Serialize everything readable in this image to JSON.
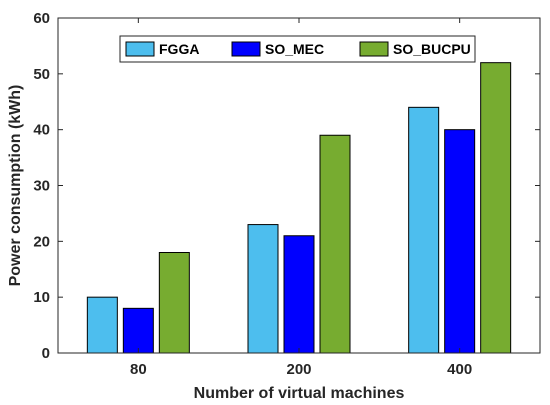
{
  "chart_data": {
    "type": "bar",
    "title": "",
    "xlabel": "Number of virtual machines",
    "ylabel": "Power consumption (kWh)",
    "categories": [
      "80",
      "200",
      "400"
    ],
    "series": [
      {
        "name": "FGGA",
        "values": [
          10,
          23,
          44
        ],
        "color": "#4DBEEE"
      },
      {
        "name": "SO_MEC",
        "values": [
          8,
          21,
          40
        ],
        "color": "#0000FF"
      },
      {
        "name": "SO_BUCPU",
        "values": [
          18,
          39,
          52
        ],
        "color": "#77AC30"
      }
    ],
    "ylim": [
      0,
      60
    ],
    "yticks": [
      0,
      10,
      20,
      30,
      40,
      50,
      60
    ],
    "grid": false,
    "legend": {
      "placement": "top-center",
      "orientation": "horizontal"
    }
  }
}
